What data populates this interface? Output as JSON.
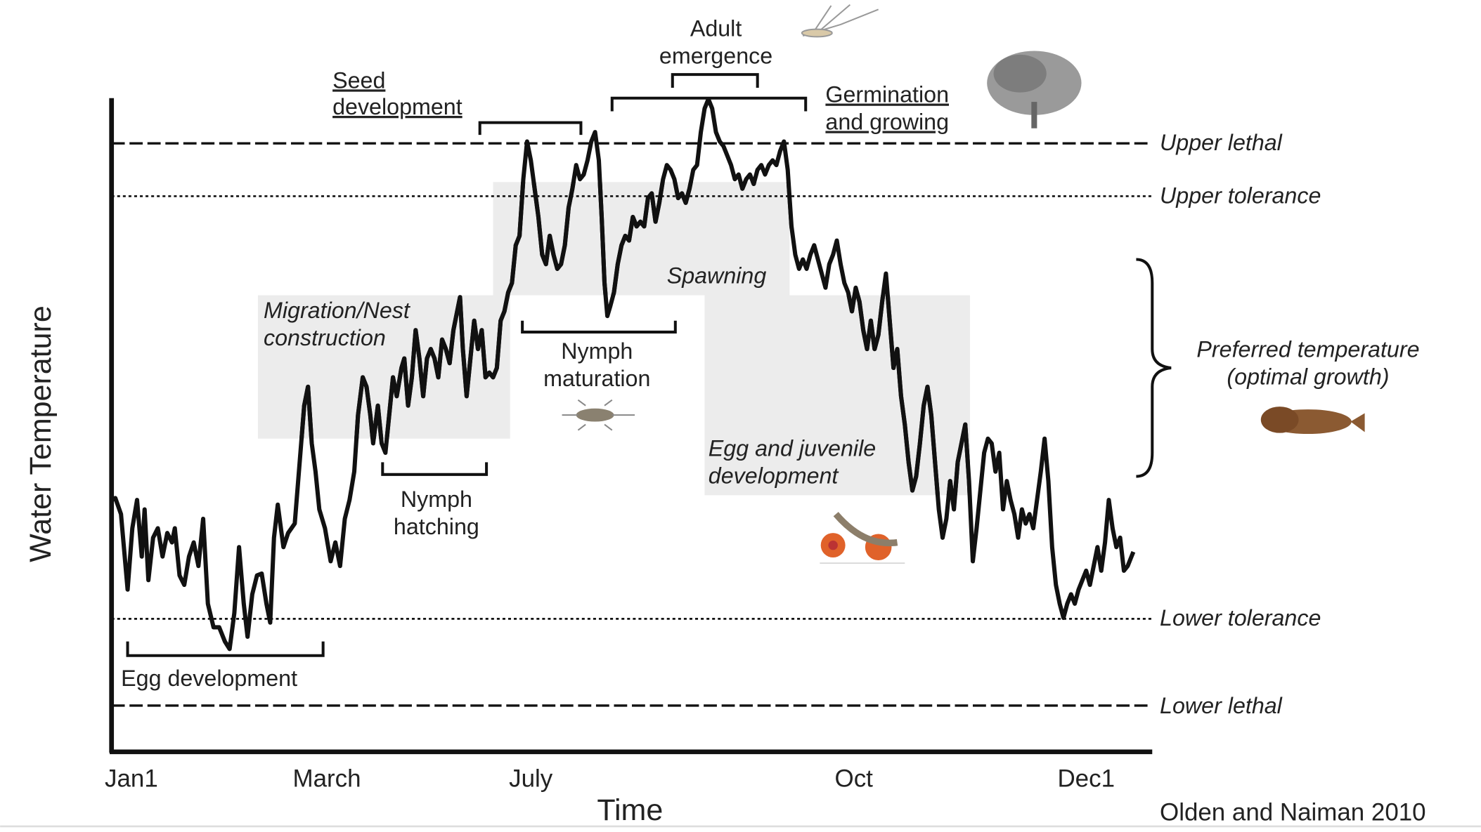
{
  "axes": {
    "y_label": "Water Temperature",
    "x_label": "Time",
    "x_labels": [
      "Jan1",
      "March",
      "July",
      "Oct",
      "Dec1"
    ]
  },
  "thresholds": [
    "Upper lethal",
    "Upper tolerance",
    "Lower tolerance",
    "Lower lethal"
  ],
  "annotations": {
    "seed": [
      "Seed",
      "development"
    ],
    "adult": [
      "Adult",
      "emergence"
    ],
    "germination": [
      "Germination",
      "and growing"
    ],
    "spawning": "Spawning",
    "migration": [
      "Migration/Nest",
      "construction"
    ],
    "nymph_maturation": [
      "Nymph",
      "maturation"
    ],
    "nymph_hatching": [
      "Nymph",
      "hatching"
    ],
    "egg_juvenile": [
      "Egg and juvenile",
      "development"
    ],
    "preferred": [
      "Preferred temperature",
      "(optimal growth)"
    ],
    "egg_development": "Egg development"
  },
  "credit": "Olden and Naiman 2010"
}
